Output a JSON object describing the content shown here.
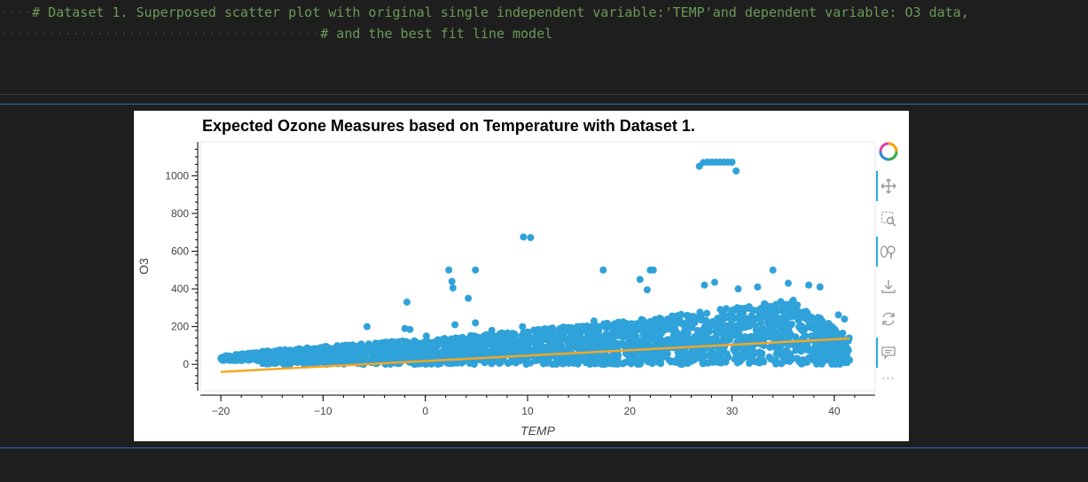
{
  "code": {
    "line1": "# Dataset 1. Superposed scatter plot with original single independent variable:'TEMP'and dependent variable: O3 data,",
    "line2": "# and the best fit line model"
  },
  "chart_data": {
    "type": "scatter",
    "title": "Expected Ozone Measures based on Temperature with Dataset 1.",
    "xlabel": "TEMP",
    "ylabel": "O3",
    "xlim": [
      -22,
      44
    ],
    "ylim": [
      -140,
      1180
    ],
    "xticks": [
      -20,
      -10,
      0,
      10,
      20,
      30,
      40
    ],
    "yticks": [
      0,
      200,
      400,
      600,
      800,
      1000
    ],
    "xtick_labels": [
      "−20",
      "−10",
      "0",
      "10",
      "20",
      "30",
      "40"
    ],
    "ytick_labels": [
      "0",
      "200",
      "400",
      "600",
      "800",
      "1000"
    ],
    "grid": false,
    "series": [
      {
        "type": "scatter",
        "color": "#30a2da",
        "outliers": [
          [
            26.8,
            1050
          ],
          [
            27.2,
            1070
          ],
          [
            27.6,
            1072
          ],
          [
            28.0,
            1072
          ],
          [
            28.4,
            1072
          ],
          [
            28.8,
            1072
          ],
          [
            29.2,
            1072
          ],
          [
            29.6,
            1072
          ],
          [
            30.0,
            1072
          ],
          [
            30.4,
            1025
          ],
          [
            9.6,
            675
          ],
          [
            10.3,
            672
          ],
          [
            2.3,
            500
          ],
          [
            2.6,
            440
          ],
          [
            2.7,
            405
          ],
          [
            4.9,
            500
          ],
          [
            4.2,
            350
          ],
          [
            -1.8,
            330
          ],
          [
            17.4,
            500
          ],
          [
            21.0,
            450
          ],
          [
            22.0,
            500
          ],
          [
            22.3,
            500
          ],
          [
            21.7,
            395
          ],
          [
            34.0,
            500
          ],
          [
            27.3,
            420
          ],
          [
            28.3,
            435
          ],
          [
            30.6,
            400
          ],
          [
            32.5,
            410
          ],
          [
            35.5,
            430
          ],
          [
            37.5,
            420
          ],
          [
            38.6,
            410
          ],
          [
            40.4,
            262
          ],
          [
            41.0,
            240
          ],
          [
            -5.7,
            200
          ],
          [
            -2.0,
            190
          ],
          [
            -1.5,
            185
          ],
          [
            0.1,
            150
          ],
          [
            2.9,
            210
          ],
          [
            4.9,
            220
          ],
          [
            6.5,
            180
          ],
          [
            9.5,
            200
          ],
          [
            14.0,
            195
          ],
          [
            16.5,
            230
          ]
        ]
      },
      {
        "type": "line",
        "name": "",
        "color": "#f5a623",
        "points": [
          [
            -20,
            -40
          ],
          [
            41.5,
            137
          ]
        ]
      }
    ]
  },
  "toolbar": {
    "logo": "bokeh-logo-icon",
    "tools": [
      "pan-icon",
      "box-zoom-icon",
      "wheel-zoom-icon",
      "save-icon",
      "reset-icon",
      "hover-icon"
    ],
    "more": "···"
  }
}
